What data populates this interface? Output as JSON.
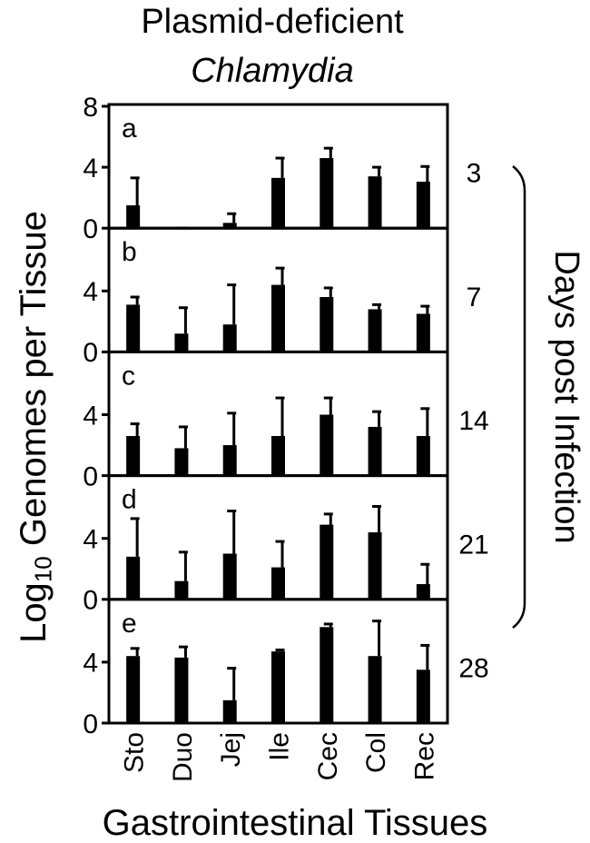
{
  "chart_data": {
    "type": "bar",
    "title": "Plasmid-deficient",
    "subtitle": "Chlamydia",
    "ylabel_prefix": "Log",
    "ylabel_sub": "10",
    "ylabel_suffix": " Genomes per Tissue",
    "xlabel": "Gastrointestinal Tissues",
    "right_label": "Days post Infection",
    "categories": [
      "Sto",
      "Duo",
      "Jej",
      "Ile",
      "Cec",
      "Col",
      "Rec"
    ],
    "ylim": [
      0,
      8
    ],
    "yticks": [
      0,
      4,
      8
    ],
    "bar_color": "#000000",
    "panels": [
      {
        "letter": "a",
        "day": "3",
        "values": [
          1.5,
          0.05,
          0.35,
          3.3,
          4.6,
          3.4,
          3.05
        ],
        "errors": [
          1.8,
          0.0,
          0.6,
          1.3,
          0.65,
          0.6,
          1.0
        ]
      },
      {
        "letter": "b",
        "day": "7",
        "values": [
          3.1,
          1.2,
          1.8,
          4.4,
          3.6,
          2.8,
          2.5
        ],
        "errors": [
          0.5,
          1.7,
          2.6,
          1.1,
          0.6,
          0.3,
          0.5
        ]
      },
      {
        "letter": "c",
        "day": "14",
        "values": [
          2.6,
          1.8,
          2.0,
          2.6,
          4.0,
          3.2,
          2.6
        ],
        "errors": [
          0.8,
          1.4,
          2.1,
          2.5,
          1.1,
          1.0,
          1.8
        ]
      },
      {
        "letter": "d",
        "day": "21",
        "values": [
          2.8,
          1.2,
          3.0,
          2.1,
          4.9,
          4.4,
          1.0
        ],
        "errors": [
          2.5,
          1.9,
          2.8,
          1.7,
          0.7,
          1.7,
          1.3
        ]
      },
      {
        "letter": "e",
        "day": "28",
        "values": [
          4.4,
          4.3,
          1.5,
          4.7,
          6.3,
          4.4,
          3.5
        ],
        "errors": [
          0.5,
          0.7,
          2.1,
          0.1,
          0.2,
          2.3,
          1.6
        ]
      }
    ]
  }
}
